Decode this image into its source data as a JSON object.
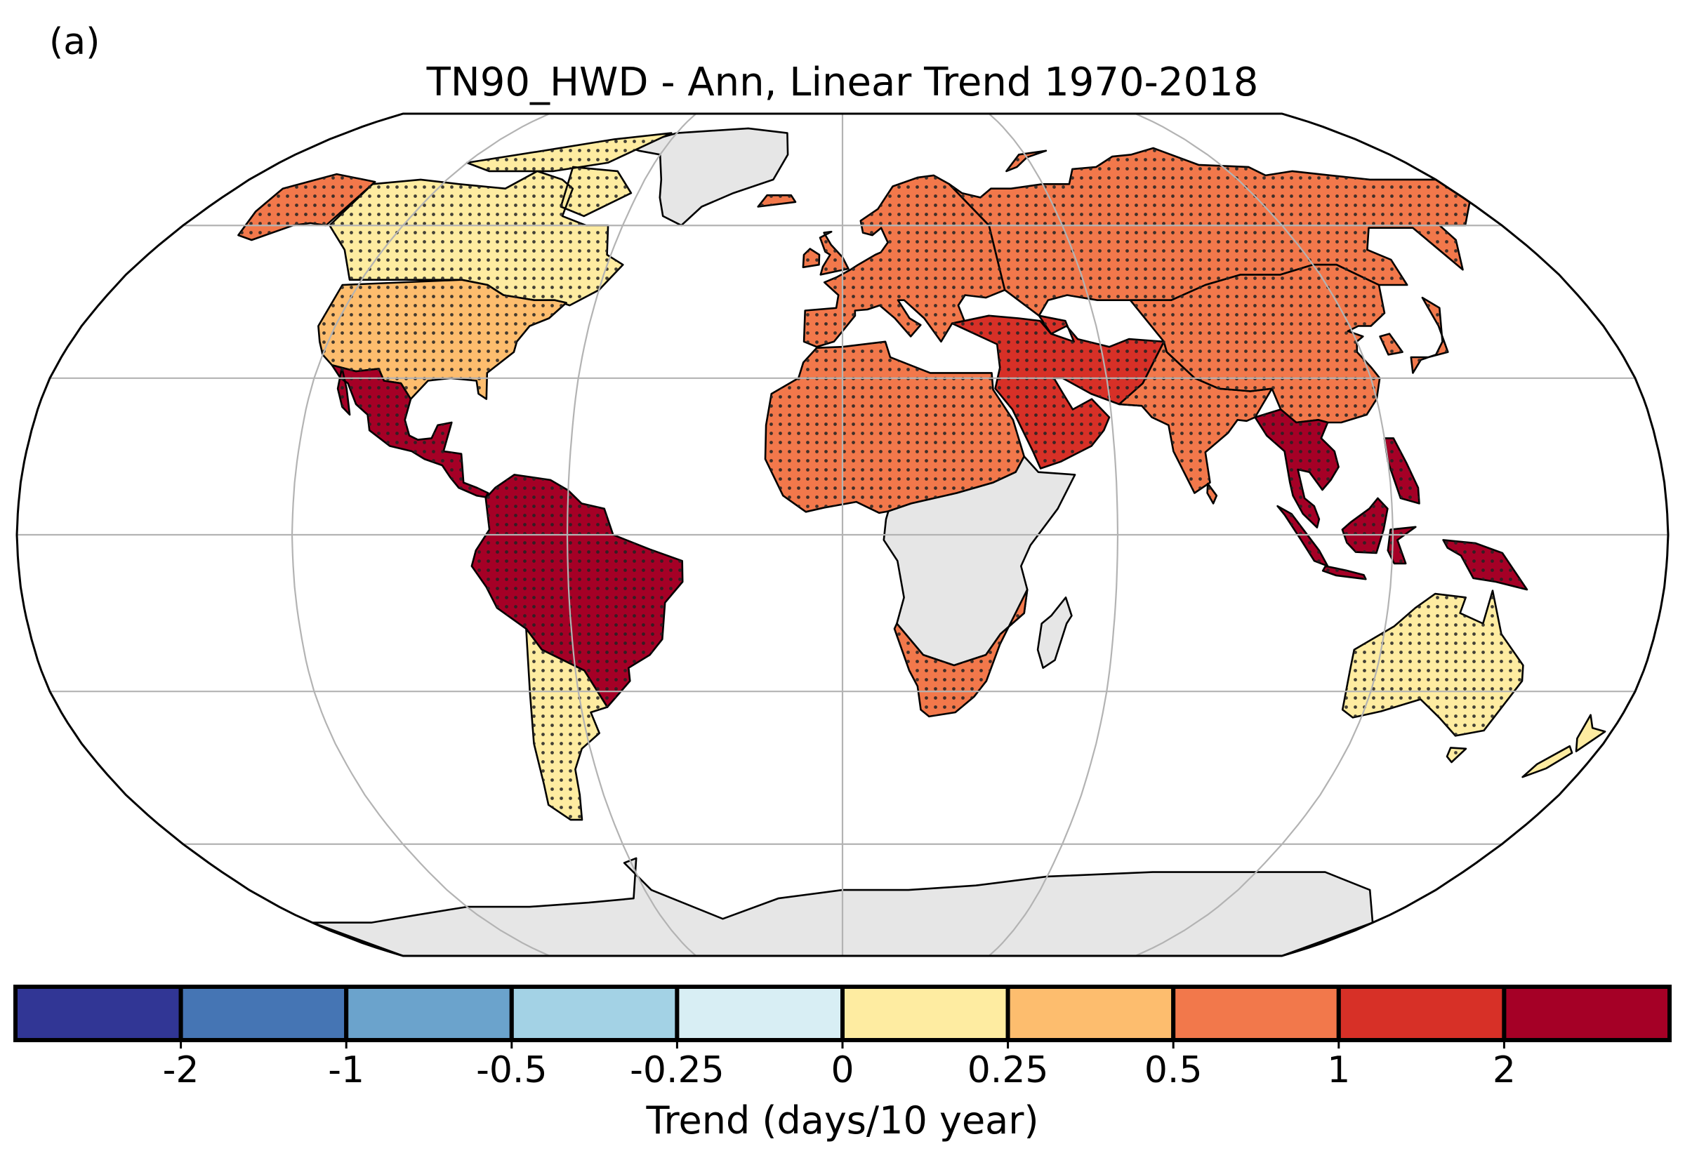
{
  "panel_label": "(a)",
  "title": "TN90_HWD - Ann, Linear Trend 1970-2018",
  "projection": "Robinson",
  "colorbar": {
    "title": "Trend (days/10 year)",
    "tick_labels": [
      "-2",
      "-1",
      "-0.5",
      "-0.25",
      "0",
      "0.25",
      "0.5",
      "1",
      "2"
    ],
    "bins": [
      {
        "range": "< -2",
        "color": "#313695"
      },
      {
        "range": "-2 to -1",
        "color": "#4575b4"
      },
      {
        "range": "-1 to -0.5",
        "color": "#6ba3cc"
      },
      {
        "range": "-0.5 to -0.25",
        "color": "#a3d2e5"
      },
      {
        "range": "-0.25 to 0",
        "color": "#d8eef4"
      },
      {
        "range": "0 to 0.25",
        "color": "#feeca1"
      },
      {
        "range": "0.25 to 0.5",
        "color": "#fdbd6e"
      },
      {
        "range": "0.5 to 1",
        "color": "#f2784b"
      },
      {
        "range": "1 to 2",
        "color": "#d73027"
      },
      {
        "range": "> 2",
        "color": "#a50026"
      }
    ]
  },
  "colors": {
    "missing_data": "#e6e6e6",
    "ocean": "#ffffff",
    "coastline": "#000000",
    "graticule": "#b3b3b3",
    "stipple": "#222222"
  },
  "regions": [
    {
      "name": "Greenland",
      "class": "missing"
    },
    {
      "name": "Antarctica",
      "class": "missing"
    },
    {
      "name": "Canada",
      "class": "0 to 0.25"
    },
    {
      "name": "Alaska",
      "class": "0.5 to 1"
    },
    {
      "name": "United States",
      "class": "0.25 to 0.5"
    },
    {
      "name": "Mexico and Central America",
      "class": "> 2"
    },
    {
      "name": "Amazon / Brazil",
      "class": "> 2"
    },
    {
      "name": "Southern South America",
      "class": "0 to 0.25"
    },
    {
      "name": "Europe",
      "class": "0.5 to 1"
    },
    {
      "name": "Russia",
      "class": "0.5 to 1"
    },
    {
      "name": "North Africa / Sahara",
      "class": "0.5 to 1"
    },
    {
      "name": "Middle East",
      "class": "1 to 2"
    },
    {
      "name": "East and Central Africa",
      "class": "missing"
    },
    {
      "name": "Southern Africa",
      "class": "0.5 to 1"
    },
    {
      "name": "India",
      "class": "0.5 to 1"
    },
    {
      "name": "China",
      "class": "0.5 to 1"
    },
    {
      "name": "Southeast Asia",
      "class": "> 2"
    },
    {
      "name": "Australia",
      "class": "0 to 0.25"
    },
    {
      "name": "New Zealand",
      "class": "0 to 0.25"
    },
    {
      "name": "Madagascar",
      "class": "missing"
    }
  ]
}
